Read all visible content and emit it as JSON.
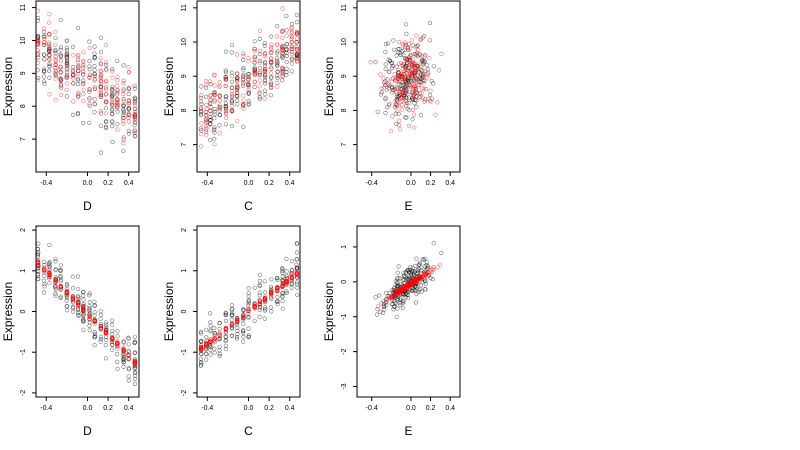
{
  "figure": {
    "background": "#ffffff"
  },
  "colors": {
    "observed": "#000000",
    "fitted": "#ff0000"
  },
  "chart_data": [
    {
      "type": "scatter",
      "panel": 1,
      "xlabel": "D",
      "ylabel": "Expression",
      "xlim": [
        -0.5,
        0.5
      ],
      "ylim": [
        6.0,
        11.2
      ],
      "x_ticks": [
        -0.4,
        0.0,
        0.2,
        0.4
      ],
      "x_tick_labels": [
        "-0.4",
        "0.0",
        "0.2",
        "0.4"
      ],
      "y_ticks": [
        7,
        8,
        9,
        10,
        11
      ],
      "y_tick_labels": [
        "7",
        "8",
        "9",
        "10",
        "11"
      ],
      "x_columns": [
        -0.48,
        -0.42,
        -0.37,
        -0.31,
        -0.26,
        -0.2,
        -0.14,
        -0.09,
        -0.04,
        0.02,
        0.07,
        0.13,
        0.18,
        0.24,
        0.29,
        0.35,
        0.4,
        0.46
      ],
      "observed_trend": {
        "intercept": 8.75,
        "slope": -2.0,
        "spread": 0.95
      },
      "fitted_trend": {
        "intercept": 8.85,
        "slope": -2.2,
        "spread": 0.85
      }
    },
    {
      "type": "scatter",
      "panel": 2,
      "xlabel": "C",
      "ylabel": "Expression",
      "xlim": [
        -0.5,
        0.5
      ],
      "ylim": [
        6.2,
        11.2
      ],
      "x_ticks": [
        -0.4,
        0.0,
        0.2,
        0.4
      ],
      "x_tick_labels": [
        "-0.4",
        "0.0",
        "0.2",
        "0.4"
      ],
      "y_ticks": [
        7,
        8,
        9,
        10,
        11
      ],
      "y_tick_labels": [
        "7",
        "8",
        "9",
        "10",
        "11"
      ],
      "x_columns": [
        -0.46,
        -0.41,
        -0.37,
        -0.33,
        -0.28,
        -0.22,
        -0.16,
        -0.11,
        -0.05,
        0.0,
        0.06,
        0.11,
        0.16,
        0.22,
        0.28,
        0.33,
        0.37,
        0.42,
        0.47
      ],
      "observed_trend": {
        "intercept": 8.9,
        "slope": 2.1,
        "spread": 0.85
      },
      "fitted_trend": {
        "intercept": 8.9,
        "slope": 2.0,
        "spread": 0.75
      }
    },
    {
      "type": "scatter",
      "panel": 3,
      "xlabel": "E",
      "ylabel": "Expression",
      "xlim": [
        -0.55,
        0.5
      ],
      "ylim": [
        6.2,
        11.2
      ],
      "x_ticks": [
        -0.4,
        0.0,
        0.2,
        0.4
      ],
      "x_tick_labels": [
        "-0.4",
        "0.0",
        "0.2",
        "0.4"
      ],
      "y_ticks": [
        7,
        8,
        9,
        10,
        11
      ],
      "y_tick_labels": [
        "7",
        "8",
        "9",
        "10",
        "11"
      ],
      "x_columns": [],
      "observed_trend": {
        "intercept": 9.0,
        "slope": 0.3,
        "spread": 1.0
      },
      "fitted_trend": {
        "intercept": 9.0,
        "slope": 0.4,
        "spread": 0.95
      }
    },
    {
      "type": "scatter",
      "panel": 4,
      "xlabel": "D",
      "ylabel": "Expression",
      "xlim": [
        -0.5,
        0.5
      ],
      "ylim": [
        -2.1,
        2.1
      ],
      "x_ticks": [
        -0.4,
        0.0,
        0.2,
        0.4
      ],
      "x_tick_labels": [
        "-0.4",
        "0.0",
        "0.2",
        "0.4"
      ],
      "y_ticks": [
        -2,
        -1,
        0,
        1,
        2
      ],
      "y_tick_labels": [
        "-2",
        "-1",
        "0",
        "1",
        "2"
      ],
      "x_columns": [
        -0.48,
        -0.42,
        -0.37,
        -0.31,
        -0.26,
        -0.2,
        -0.14,
        -0.09,
        -0.04,
        0.02,
        0.07,
        0.13,
        0.18,
        0.24,
        0.29,
        0.35,
        0.4,
        0.46
      ],
      "observed_trend": {
        "intercept": -0.05,
        "slope": -2.6,
        "spread": 0.45
      },
      "fitted_trend": {
        "intercept": -0.05,
        "slope": -2.6,
        "spread": 0.05
      }
    },
    {
      "type": "scatter",
      "panel": 5,
      "xlabel": "C",
      "ylabel": "Expression",
      "xlim": [
        -0.5,
        0.5
      ],
      "ylim": [
        -2.1,
        2.1
      ],
      "x_ticks": [
        -0.4,
        0.0,
        0.2,
        0.4
      ],
      "x_tick_labels": [
        "-0.4",
        "0.0",
        "0.2",
        "0.4"
      ],
      "y_ticks": [
        -2,
        -1,
        0,
        1,
        2
      ],
      "y_tick_labels": [
        "-2",
        "-1",
        "0",
        "1",
        "2"
      ],
      "x_columns": [
        -0.46,
        -0.41,
        -0.37,
        -0.33,
        -0.28,
        -0.22,
        -0.16,
        -0.11,
        -0.05,
        0.0,
        0.06,
        0.11,
        0.16,
        0.22,
        0.28,
        0.33,
        0.37,
        0.42,
        0.47
      ],
      "observed_trend": {
        "intercept": 0.0,
        "slope": 2.1,
        "spread": 0.5
      },
      "fitted_trend": {
        "intercept": 0.0,
        "slope": 2.0,
        "spread": 0.05
      }
    },
    {
      "type": "scatter",
      "panel": 6,
      "xlabel": "E",
      "ylabel": "Expression",
      "xlim": [
        -0.55,
        0.5
      ],
      "ylim": [
        -3.3,
        1.6
      ],
      "x_ticks": [
        -0.4,
        0.0,
        0.2,
        0.4
      ],
      "x_tick_labels": [
        "-0.4",
        "0.0",
        "0.2",
        "0.4"
      ],
      "y_ticks": [
        -3,
        -2,
        -1,
        0,
        1
      ],
      "y_tick_labels": [
        "-3",
        "-2",
        "-1",
        "0",
        "1"
      ],
      "x_columns": [],
      "observed_trend": {
        "intercept": 0.0,
        "slope": 1.9,
        "spread": 0.5
      },
      "fitted_trend": {
        "intercept": -0.05,
        "slope": 1.85,
        "spread": 0.05
      }
    }
  ]
}
